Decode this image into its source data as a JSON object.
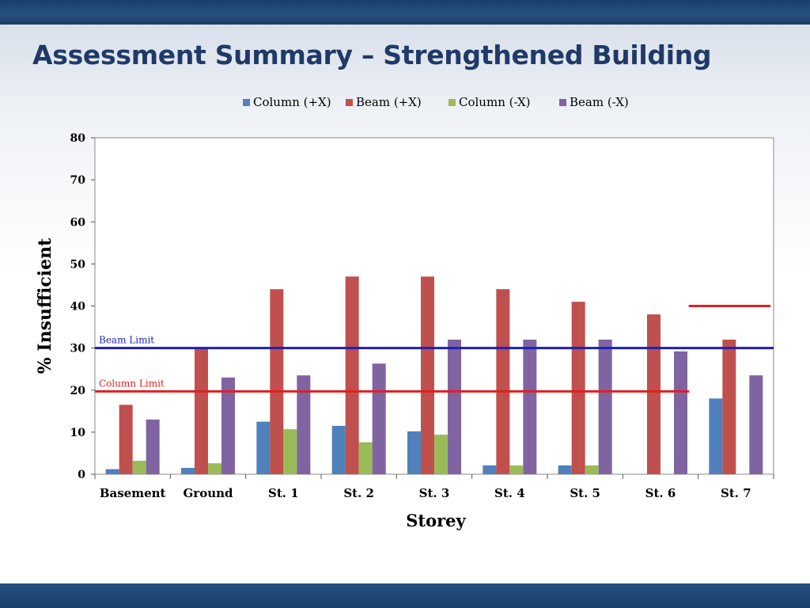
{
  "slide": {
    "title": "Assessment Summary – Strengthened Building"
  },
  "chart_data": {
    "type": "bar",
    "title": "",
    "xlabel": "Storey",
    "ylabel": "% Insufficient",
    "ylim": [
      0,
      80
    ],
    "yticks": [
      0,
      10,
      20,
      30,
      40,
      50,
      60,
      70,
      80
    ],
    "grid": false,
    "legend_position": "top",
    "categories": [
      "Basement",
      "Ground",
      "St. 1",
      "St. 2",
      "St. 3",
      "St. 4",
      "St. 5",
      "St. 6",
      "St. 7"
    ],
    "series": [
      {
        "name": "Column (+X)",
        "color": "#4f81bd",
        "values": [
          1.2,
          1.5,
          12.5,
          11.5,
          10.2,
          2.1,
          2.1,
          0,
          18
        ]
      },
      {
        "name": "Beam (+X)",
        "color": "#c0504d",
        "values": [
          16.5,
          30,
          44,
          47,
          47,
          44,
          41,
          38,
          32
        ]
      },
      {
        "name": "Column (-X)",
        "color": "#9bbb59",
        "values": [
          3.2,
          2.6,
          10.7,
          7.6,
          9.4,
          2.1,
          2.1,
          0,
          0
        ]
      },
      {
        "name": "Beam (-X)",
        "color": "#8064a2",
        "values": [
          13,
          23,
          23.5,
          26.3,
          32,
          32,
          32,
          29.2,
          23.5
        ]
      }
    ],
    "reference_lines": [
      {
        "label": "Beam Limit",
        "value": 30,
        "color": "#1f1fb4",
        "from_category": "Basement",
        "to_category": "St. 7"
      },
      {
        "label": "Column Limit",
        "value": 19.7,
        "color": "#e02020",
        "from_category": "Basement",
        "to_category": "St. 6"
      },
      {
        "label": "",
        "value": 40,
        "color": "#e02020",
        "from_category": "St. 7",
        "to_category": "St. 7"
      }
    ]
  }
}
